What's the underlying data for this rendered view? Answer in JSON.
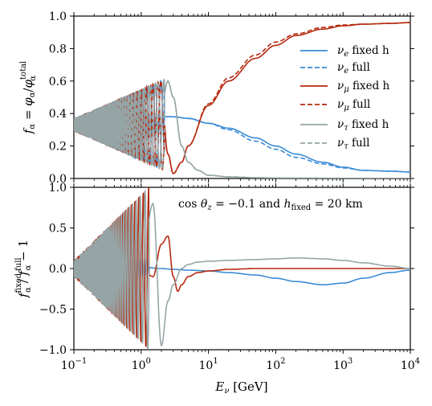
{
  "chart_data": [
    {
      "type": "line",
      "panel": "top",
      "ylabel": "f_α = φ_α / φ_α^total",
      "xscale": "log",
      "xlim": [
        0.1,
        10000
      ],
      "ylim": [
        0.0,
        1.0
      ],
      "yticks": [
        "0.0",
        "0.2",
        "0.4",
        "0.6",
        "0.8",
        "1.0"
      ],
      "grid": false,
      "legend": "right",
      "note": "Oscillation curves vs neutrino energy (log x). Below ~3 GeV the three flavours oscillate rapidly.",
      "series": [
        {
          "name": "ν_e fixed h",
          "color": "#3a8bd6",
          "dash": "solid",
          "x": [
            0.1,
            0.2,
            0.5,
            1,
            2,
            3,
            5,
            10,
            20,
            50,
            100,
            200,
            500,
            1000,
            2000,
            5000,
            10000
          ],
          "y": [
            0.33,
            0.36,
            0.38,
            0.38,
            0.38,
            0.38,
            0.37,
            0.34,
            0.31,
            0.25,
            0.2,
            0.15,
            0.1,
            0.07,
            0.05,
            0.045,
            0.04
          ]
        },
        {
          "name": "ν_e full",
          "color": "#3a8bd6",
          "dash": "dashed",
          "x": [
            0.1,
            0.2,
            0.5,
            1,
            2,
            3,
            5,
            10,
            20,
            50,
            100,
            200,
            500,
            1000,
            2000,
            5000,
            10000
          ],
          "y": [
            0.33,
            0.36,
            0.38,
            0.38,
            0.38,
            0.38,
            0.37,
            0.34,
            0.3,
            0.23,
            0.18,
            0.13,
            0.09,
            0.065,
            0.05,
            0.045,
            0.04
          ]
        },
        {
          "name": "ν_μ fixed h",
          "color": "#b52a0f",
          "dash": "solid",
          "x": [
            0.1,
            1,
            2,
            2.5,
            3,
            4,
            5,
            10,
            20,
            50,
            100,
            200,
            500,
            1000,
            2000,
            5000,
            10000
          ],
          "y": [
            0.33,
            0.35,
            0.5,
            0.15,
            0.03,
            0.1,
            0.2,
            0.45,
            0.6,
            0.74,
            0.82,
            0.88,
            0.92,
            0.94,
            0.95,
            0.955,
            0.96
          ]
        },
        {
          "name": "ν_μ full",
          "color": "#b52a0f",
          "dash": "dashed",
          "x": [
            0.1,
            1,
            2,
            2.5,
            3,
            4,
            5,
            10,
            20,
            50,
            100,
            200,
            500,
            1000,
            2000,
            5000,
            10000
          ],
          "y": [
            0.33,
            0.35,
            0.5,
            0.15,
            0.03,
            0.1,
            0.2,
            0.46,
            0.62,
            0.76,
            0.84,
            0.89,
            0.93,
            0.945,
            0.95,
            0.955,
            0.96
          ]
        },
        {
          "name": "ν_τ fixed h",
          "color": "#95a5a6",
          "dash": "solid",
          "x": [
            0.1,
            1,
            2,
            2.5,
            3,
            4,
            5,
            7,
            10,
            20,
            50,
            100,
            1000,
            10000
          ],
          "y": [
            0.33,
            0.3,
            0.45,
            0.6,
            0.5,
            0.2,
            0.1,
            0.05,
            0.02,
            0.01,
            0.005,
            0.003,
            0.001,
            0.0
          ]
        },
        {
          "name": "ν_τ full",
          "color": "#95a5a6",
          "dash": "dashed",
          "x": [
            0.1,
            1,
            2,
            2.5,
            3,
            4,
            5,
            7,
            10,
            20,
            50,
            100,
            1000,
            10000
          ],
          "y": [
            0.33,
            0.3,
            0.45,
            0.6,
            0.5,
            0.2,
            0.1,
            0.05,
            0.02,
            0.01,
            0.005,
            0.003,
            0.001,
            0.0
          ]
        }
      ]
    },
    {
      "type": "line",
      "panel": "bottom",
      "xlabel": "E_ν [GeV]",
      "ylabel": "f_α^fixed / f_α^full − 1",
      "xscale": "log",
      "xlim": [
        0.1,
        10000
      ],
      "ylim": [
        -1.0,
        1.0
      ],
      "xticks": [
        "10^-1",
        "10^0",
        "10^1",
        "10^2",
        "10^3",
        "10^4"
      ],
      "yticks": [
        "−1.0",
        "−0.5",
        "0.0",
        "0.5",
        "1.0"
      ],
      "grid": false,
      "annotation": "cos θ_z = −0.1 and h_fixed = 20 km",
      "series": [
        {
          "name": "ν_e",
          "color": "#3a8bd6",
          "x": [
            0.1,
            0.5,
            1,
            2,
            3,
            5,
            10,
            20,
            50,
            100,
            200,
            500,
            1000,
            2000,
            5000,
            10000
          ],
          "y": [
            0.1,
            0.05,
            0.02,
            0.0,
            -0.01,
            -0.02,
            -0.03,
            -0.05,
            -0.08,
            -0.12,
            -0.16,
            -0.2,
            -0.18,
            -0.12,
            -0.05,
            -0.02
          ]
        },
        {
          "name": "ν_μ",
          "color": "#b52a0f",
          "x": [
            0.1,
            1,
            1.5,
            2,
            2.5,
            3,
            3.5,
            4,
            5,
            7,
            10,
            20,
            50,
            100,
            1000,
            10000
          ],
          "y": [
            0.0,
            0.0,
            -0.1,
            0.3,
            0.4,
            -0.1,
            -0.28,
            -0.2,
            -0.1,
            -0.05,
            -0.03,
            -0.01,
            0.0,
            0.0,
            0.0,
            0.0
          ]
        },
        {
          "name": "ν_τ",
          "color": "#95a5a6",
          "x": [
            0.1,
            1,
            1.5,
            2,
            2.5,
            3,
            4,
            5,
            7,
            10,
            20,
            50,
            100,
            200,
            500,
            1000,
            2000,
            5000,
            10000
          ],
          "y": [
            0.0,
            0.0,
            0.8,
            -0.95,
            -0.4,
            -0.2,
            0.0,
            0.05,
            0.08,
            0.09,
            0.1,
            0.11,
            0.12,
            0.13,
            0.12,
            0.1,
            0.07,
            0.03,
            0.0
          ]
        }
      ]
    }
  ]
}
